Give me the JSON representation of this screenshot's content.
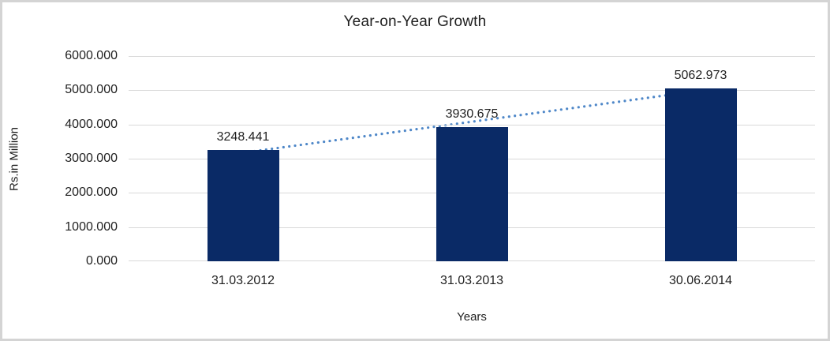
{
  "chart_data": {
    "type": "bar",
    "title": "Year-on-Year Growth",
    "xlabel": "Years",
    "ylabel": "Rs.in Million",
    "categories": [
      "31.03.2012",
      "31.03.2013",
      "30.06.2014"
    ],
    "values": [
      3248.441,
      3930.675,
      5062.973
    ],
    "data_labels": [
      "3248.441",
      "3930.675",
      "5062.973"
    ],
    "ylim": [
      0,
      6000
    ],
    "ytick_step": 1000,
    "y_tick_labels": [
      "0.000",
      "1000.000",
      "2000.000",
      "3000.000",
      "4000.000",
      "5000.000",
      "6000.000"
    ],
    "grid": "horizontal",
    "legend": "none",
    "trendline": {
      "type": "linear",
      "style": "dotted"
    }
  },
  "colors": {
    "bar": "#0a2a66",
    "trendline": "#4e87c8",
    "gridline": "#d9d9d9",
    "border": "#d4d4d4",
    "text": "#1f1f1f",
    "background": "#ffffff"
  }
}
